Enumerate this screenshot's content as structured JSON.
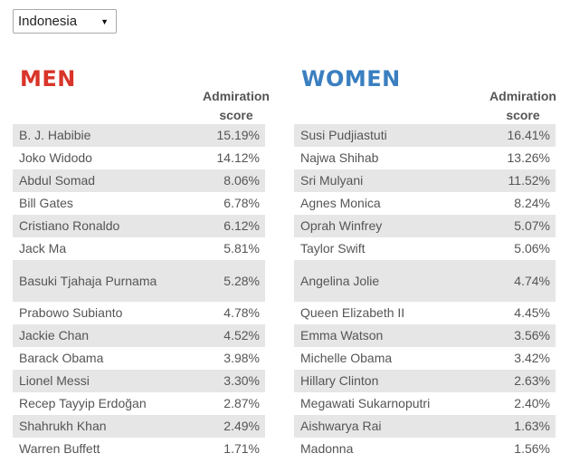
{
  "filter": {
    "selected": "Indonesia"
  },
  "men": {
    "title": "MEN",
    "score_header": "Admiration score",
    "rows": [
      {
        "name": "B. J. Habibie",
        "score": "15.19%"
      },
      {
        "name": "Joko Widodo",
        "score": "14.12%"
      },
      {
        "name": "Abdul Somad",
        "score": "8.06%"
      },
      {
        "name": "Bill Gates",
        "score": "6.78%"
      },
      {
        "name": "Cristiano Ronaldo",
        "score": "6.12%"
      },
      {
        "name": "Jack Ma",
        "score": "5.81%"
      },
      {
        "name": "Basuki Tjahaja Purnama",
        "score": "5.28%"
      },
      {
        "name": "Prabowo Subianto",
        "score": "4.78%"
      },
      {
        "name": "Jackie Chan",
        "score": "4.52%"
      },
      {
        "name": "Barack Obama",
        "score": "3.98%"
      },
      {
        "name": "Lionel Messi",
        "score": "3.30%"
      },
      {
        "name": "Recep Tayyip Erdoğan",
        "score": "2.87%"
      },
      {
        "name": "Shahrukh Khan",
        "score": "2.49%"
      },
      {
        "name": "Warren Buffett",
        "score": "1.71%"
      }
    ]
  },
  "women": {
    "title": "WOMEN",
    "score_header": "Admiration score",
    "rows": [
      {
        "name": "Susi Pudjiastuti",
        "score": "16.41%"
      },
      {
        "name": "Najwa Shihab",
        "score": "13.26%"
      },
      {
        "name": "Sri Mulyani",
        "score": "11.52%"
      },
      {
        "name": "Agnes Monica",
        "score": "8.24%"
      },
      {
        "name": "Oprah Winfrey",
        "score": "5.07%"
      },
      {
        "name": "Taylor Swift",
        "score": "5.06%"
      },
      {
        "name": "Angelina Jolie",
        "score": "4.74%"
      },
      {
        "name": "Queen Elizabeth II",
        "score": "4.45%"
      },
      {
        "name": "Emma Watson",
        "score": "3.56%"
      },
      {
        "name": "Michelle Obama",
        "score": "3.42%"
      },
      {
        "name": "Hillary Clinton",
        "score": "2.63%"
      },
      {
        "name": "Megawati Sukarnoputri",
        "score": "2.40%"
      },
      {
        "name": "Aishwarya Rai",
        "score": "1.63%"
      },
      {
        "name": "Madonna",
        "score": "1.56%"
      }
    ]
  }
}
